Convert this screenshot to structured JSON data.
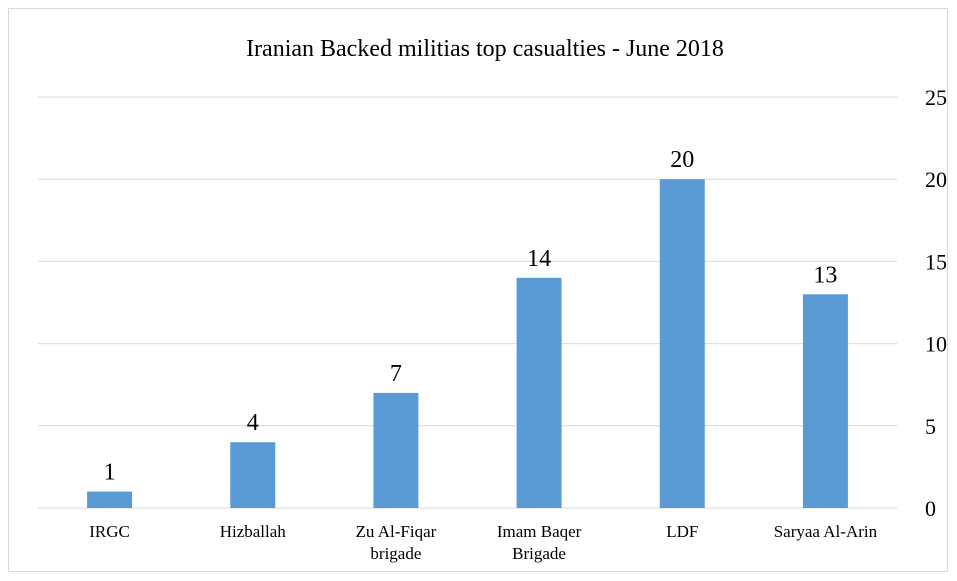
{
  "chart_data": {
    "type": "bar",
    "title": "Iranian Backed militias top casualties - June 2018",
    "categories": [
      [
        "IRGC"
      ],
      [
        "Hizballah"
      ],
      [
        "Zu Al-Fiqar",
        "brigade"
      ],
      [
        "Imam Baqer",
        "Brigade"
      ],
      [
        "LDF"
      ],
      [
        "Saryaa Al-Arin"
      ]
    ],
    "values": [
      1,
      4,
      7,
      14,
      20,
      13
    ],
    "ylim": [
      0,
      25
    ],
    "yticks": [
      0,
      5,
      10,
      15,
      20,
      25
    ],
    "y_axis_side": "right",
    "grid": true,
    "data_labels": true,
    "bar_color": "#5b9bd5",
    "xlabel": "",
    "ylabel": ""
  }
}
